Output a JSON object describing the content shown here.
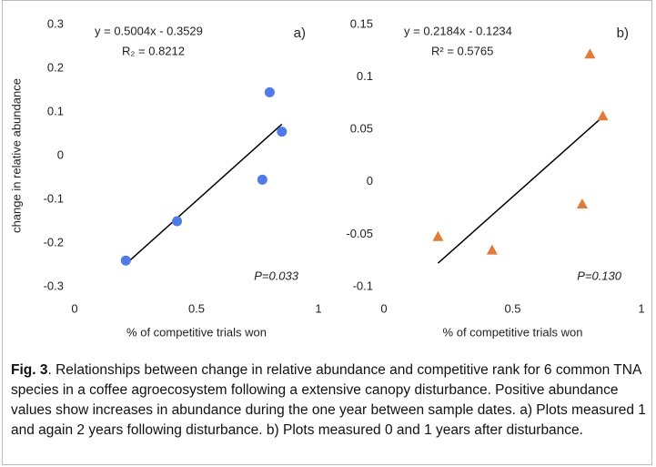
{
  "chart_data": [
    {
      "type": "scatter",
      "panel": "a)",
      "y_label": "change in relative abundance",
      "x_label": "% of competitive trials won",
      "equation": "y = 0.5004x - 0.3529",
      "r_squared": "R₂ = 0.8212",
      "p_value": "P=0.033",
      "marker": "circle",
      "color": "#4f7ae8",
      "x": [
        0.21,
        0.42,
        0.77,
        0.8,
        0.85
      ],
      "values": [
        -0.24,
        -0.15,
        -0.055,
        0.145,
        0.055
      ],
      "trendline": {
        "x": [
          0.21,
          0.85
        ],
        "values": [
          -0.248,
          0.072
        ],
        "color": "#000000"
      },
      "xlim": [
        0,
        1
      ],
      "xticks": [
        0,
        0.5,
        1
      ],
      "ylim": [
        -0.3,
        0.3
      ],
      "yticks": [
        -0.3,
        -0.2,
        -0.1,
        0,
        0.1,
        0.2,
        0.3
      ]
    },
    {
      "type": "scatter",
      "panel": "b)",
      "x_label": "% of competitive trials won",
      "equation": "y = 0.2184x - 0.1234",
      "r_squared": "R² = 0.5765",
      "p_value": "P=0.130",
      "marker": "triangle",
      "color": "#e07b39",
      "x": [
        0.21,
        0.42,
        0.77,
        0.8,
        0.85
      ],
      "values": [
        -0.052,
        -0.065,
        -0.021,
        0.122,
        0.063
      ],
      "trendline": {
        "x": [
          0.21,
          0.85
        ],
        "values": [
          -0.0775,
          0.0622
        ],
        "color": "#000000"
      },
      "xlim": [
        0,
        1
      ],
      "xticks": [
        0,
        0.5,
        1
      ],
      "ylim": [
        -0.1,
        0.15
      ],
      "yticks": [
        -0.1,
        -0.05,
        0,
        0.05,
        0.1,
        0.15
      ]
    }
  ],
  "caption": {
    "label": "Fig. 3",
    "text": ". Relationships between change in relative abundance and competitive rank for 6 common TNA species in a coffee agroecosystem following a extensive canopy disturbance. Positive abundance values show increases in abundance during the one year between sample dates. a) Plots measured 1 and again 2 years following disturbance. b) Plots measured 0 and 1 years after disturbance."
  }
}
